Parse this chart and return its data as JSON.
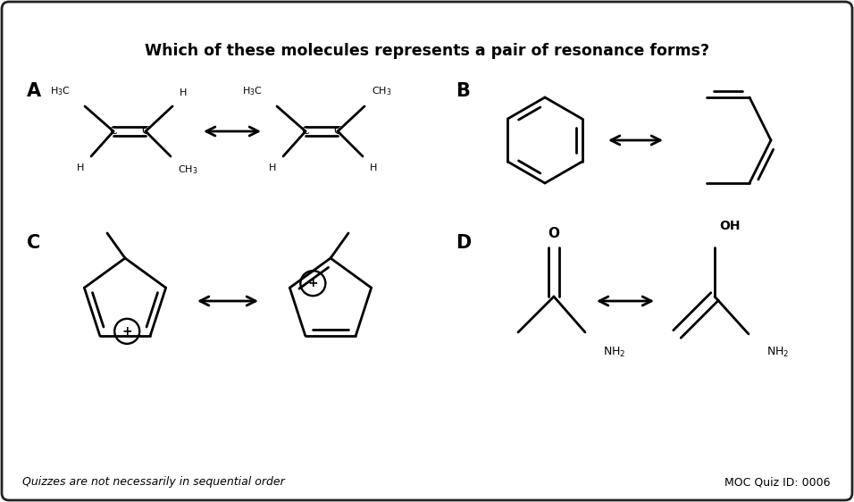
{
  "bg_color": "#ffffff",
  "border_color": "#222222",
  "text_color": "#000000",
  "title": "Which of these molecules represents a pair of resonance forms?",
  "title_fontsize": 12.5,
  "footer_left": "Quizzes are not necessarily in sequential order",
  "footer_right": "MOC Quiz ID: 0006",
  "footer_fontsize": 9,
  "label_fontsize": 15,
  "small_fontsize": 8,
  "line_width": 2.0
}
